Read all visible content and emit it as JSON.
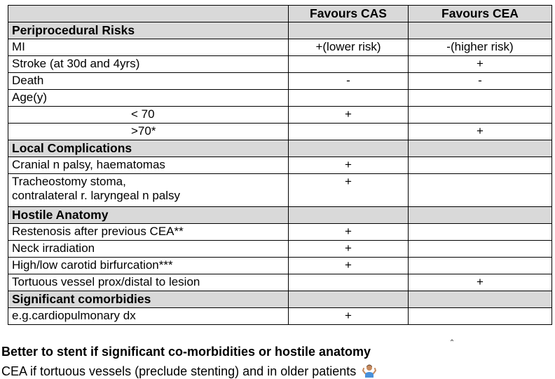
{
  "table": {
    "header": [
      "",
      "Favours CAS",
      "Favours CEA"
    ],
    "sections": [
      {
        "title": "Periprocedural Risks",
        "rows": [
          {
            "label": "MI",
            "cas": "+(lower risk)",
            "cea": "-(higher risk)"
          },
          {
            "label": "Stroke (at 30d and 4yrs)",
            "cas": "",
            "cea": "+"
          },
          {
            "label": "Death",
            "cas": "-",
            "cea": "-"
          },
          {
            "label": "Age(y)",
            "cas": "",
            "cea": ""
          },
          {
            "label": "< 70",
            "cas": "+",
            "cea": "",
            "sub": true
          },
          {
            "label": ">70*",
            "cas": "",
            "cea": "+",
            "sub": true
          }
        ]
      },
      {
        "title": "Local Complications",
        "rows": [
          {
            "label": "Cranial n palsy, haematomas",
            "cas": "+",
            "cea": ""
          },
          {
            "label": "Tracheostomy stoma,",
            "label2": "contralateral r. laryngeal n palsy",
            "cas": "+",
            "cea": ""
          }
        ]
      },
      {
        "title": "Hostile Anatomy",
        "rows": [
          {
            "label": "Restenosis after previous CEA**",
            "cas": "+",
            "cea": ""
          },
          {
            "label": "Neck irradiation",
            "cas": "+",
            "cea": ""
          },
          {
            "label": "High/low carotid birfurcation***",
            "cas": "+",
            "cea": ""
          },
          {
            "label": "Tortuous vessel prox/distal to lesion",
            "cas": "",
            "cea": "+"
          }
        ]
      },
      {
        "title": "Significant comorbidies",
        "rows": [
          {
            "label": "e.g.cardiopulmonary dx",
            "cas": "+",
            "cea": ""
          }
        ]
      }
    ]
  },
  "footer": {
    "line1": "Better to stent if significant co-morbidities or hostile anatomy",
    "line2": "CEA if tortuous vessels (preclude stenting) and in older patients",
    "emoji_icon": "person-shrugging-icon"
  }
}
